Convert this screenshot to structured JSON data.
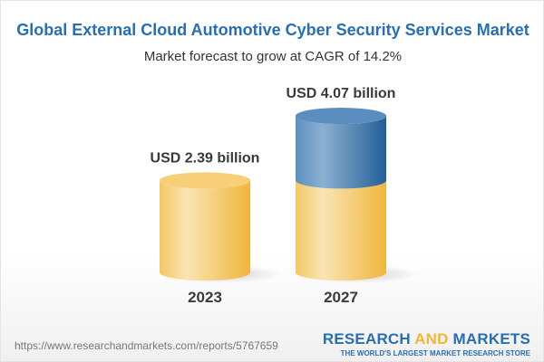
{
  "title": "Global External Cloud Automotive Cyber Security Services Market",
  "subtitle": "Market forecast to grow at CAGR of 14.2%",
  "chart_data": {
    "type": "bar",
    "style": "3d-cylinder",
    "categories": [
      "2023",
      "2027"
    ],
    "values": [
      2.39,
      4.07
    ],
    "data_labels": [
      "USD 2.39 billion",
      "USD 4.07 billion"
    ],
    "unit": "USD billion",
    "colors": {
      "base": "#f2c15a",
      "growth": "#3f7bb0"
    }
  },
  "footer": {
    "url": "https://www.researchandmarkets.com/reports/5767659",
    "logo_part1": "RESEARCH ",
    "logo_part2": "AND",
    "logo_part3": " MARKETS",
    "tagline": "THE WORLD'S LARGEST MARKET RESEARCH STORE"
  }
}
